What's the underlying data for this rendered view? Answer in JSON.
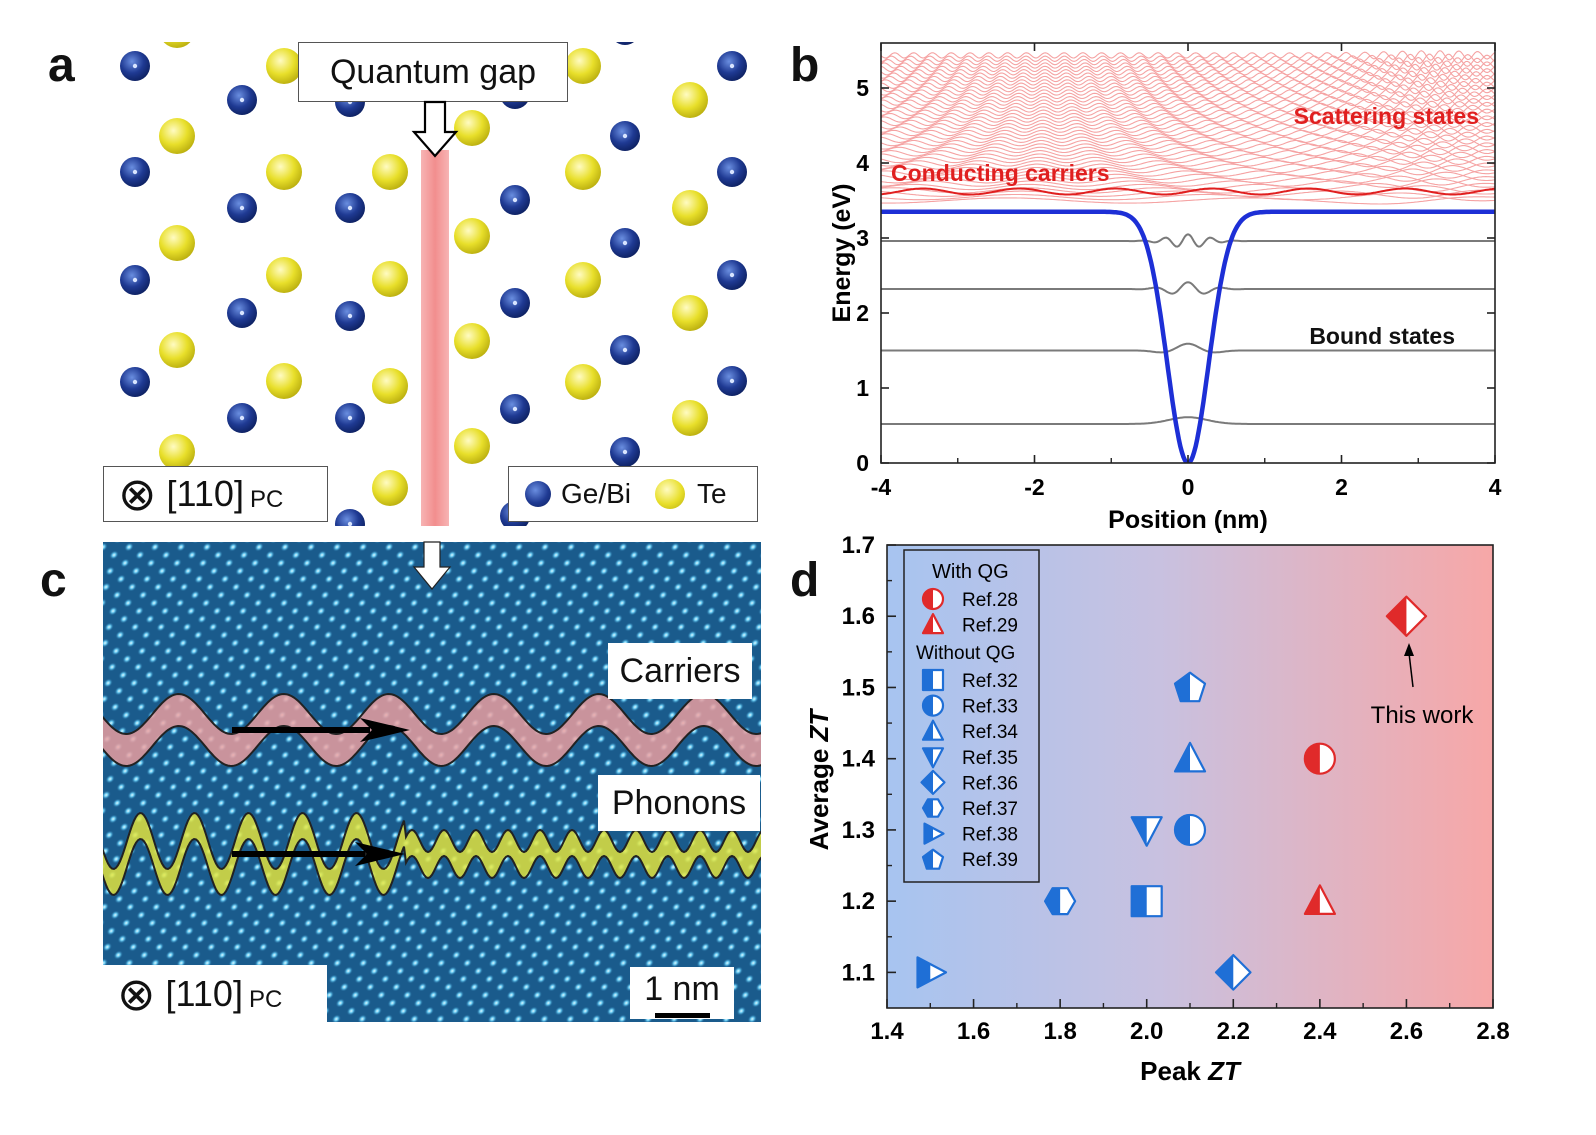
{
  "panels": {
    "a": {
      "letter": "a",
      "banner": "Quantum gap",
      "orientation_symbol": "⊗",
      "orientation_label": "[110]",
      "orientation_sub": "PC",
      "legend": [
        {
          "label": "Ge/Bi",
          "color": "#1f3a93"
        },
        {
          "label": "Te",
          "color": "#e8df2a"
        }
      ]
    },
    "b": {
      "letter": "b",
      "label_scattering": "Scattering states",
      "label_conducting": "Conducting carriers",
      "label_bound": "Bound states",
      "xlabel": "Position (nm)",
      "ylabel": "Energy (eV)",
      "xticks": [
        "-4",
        "-2",
        "0",
        "2",
        "4"
      ],
      "yticks": [
        "0",
        "1",
        "2",
        "3",
        "4",
        "5"
      ],
      "xlim": [
        -4,
        4
      ],
      "ylim": [
        0,
        5.6
      ],
      "well_depth_eV": 3.35,
      "bound_levels_eV": [
        0.52,
        1.5,
        2.32,
        2.96
      ],
      "conducting_level_eV": 3.62,
      "colors": {
        "well": "#1d2fd6",
        "bound": "#7a7a7a",
        "conducting": "#e01f1f",
        "scattering": "#f5a3a3",
        "labels": "#e01f1f"
      }
    },
    "c": {
      "letter": "c",
      "carriers": "Carriers",
      "phonons": "Phonons",
      "orientation_symbol": "⊗",
      "orientation_label": "[110]",
      "orientation_sub": "PC",
      "scalebar": "1 nm"
    },
    "d": {
      "letter": "d",
      "legend_with_title": "With QG",
      "legend_without_title": "Without QG",
      "annotation": "This work",
      "xlabel_pre": "Peak ",
      "xlabel_italic": "ZT",
      "ylabel_pre": "Average ",
      "ylabel_italic": "ZT",
      "xticks": [
        "1.4",
        "1.6",
        "1.8",
        "2.0",
        "2.2",
        "2.4",
        "2.6",
        "2.8"
      ],
      "yticks": [
        "1.1",
        "1.2",
        "1.3",
        "1.4",
        "1.5",
        "1.6",
        "1.7"
      ]
    }
  },
  "chart_data": [
    {
      "type": "scatter",
      "title": "",
      "xlabel": "Peak ZT",
      "ylabel": "Average ZT",
      "xlim": [
        1.4,
        2.8
      ],
      "ylim": [
        1.05,
        1.7
      ],
      "grid": false,
      "legend_position": "top-left",
      "series": [
        {
          "name": "Ref.28",
          "group": "With QG",
          "marker": "circle",
          "color": "#e02a2a",
          "x": [
            2.4
          ],
          "y": [
            1.4
          ]
        },
        {
          "name": "Ref.29",
          "group": "With QG",
          "marker": "triangle-up",
          "color": "#e02a2a",
          "x": [
            2.4
          ],
          "y": [
            1.2
          ]
        },
        {
          "name": "Ref.32",
          "group": "Without QG",
          "marker": "square",
          "color": "#1f6fd6",
          "x": [
            2.0
          ],
          "y": [
            1.2
          ]
        },
        {
          "name": "Ref.33",
          "group": "Without QG",
          "marker": "circle",
          "color": "#1f6fd6",
          "x": [
            2.1
          ],
          "y": [
            1.3
          ]
        },
        {
          "name": "Ref.34",
          "group": "Without QG",
          "marker": "triangle-up",
          "color": "#1f6fd6",
          "x": [
            2.1
          ],
          "y": [
            1.4
          ]
        },
        {
          "name": "Ref.35",
          "group": "Without QG",
          "marker": "triangle-down",
          "color": "#1f6fd6",
          "x": [
            2.0
          ],
          "y": [
            1.3
          ]
        },
        {
          "name": "Ref.36",
          "group": "Without QG",
          "marker": "diamond",
          "color": "#1f6fd6",
          "x": [
            2.2
          ],
          "y": [
            1.1
          ]
        },
        {
          "name": "Ref.37",
          "group": "Without QG",
          "marker": "hexagon",
          "color": "#1f6fd6",
          "x": [
            1.8
          ],
          "y": [
            1.2
          ]
        },
        {
          "name": "Ref.38",
          "group": "Without QG",
          "marker": "triangle-right",
          "color": "#1f6fd6",
          "x": [
            1.5
          ],
          "y": [
            1.1
          ]
        },
        {
          "name": "Ref.39",
          "group": "Without QG",
          "marker": "pentagon",
          "color": "#1f6fd6",
          "x": [
            2.1
          ],
          "y": [
            1.5
          ]
        },
        {
          "name": "This work",
          "group": "",
          "marker": "diamond",
          "color": "#e02a2a",
          "x": [
            2.6
          ],
          "y": [
            1.6
          ]
        }
      ]
    },
    {
      "type": "line",
      "title": "",
      "xlabel": "Position (nm)",
      "ylabel": "Energy (eV)",
      "xlim": [
        -4,
        4
      ],
      "ylim": [
        0,
        5.6
      ],
      "grid": false,
      "series": [
        {
          "name": "Bound states",
          "levels_eV": [
            0.52,
            1.5,
            2.32,
            2.96
          ]
        },
        {
          "name": "Conducting carriers",
          "levels_eV": [
            3.62
          ]
        }
      ]
    }
  ]
}
